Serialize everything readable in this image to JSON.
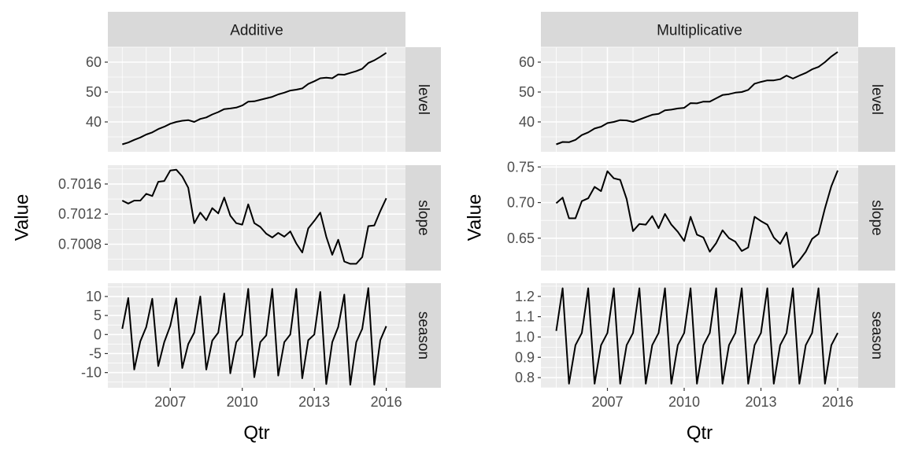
{
  "chart_data": [
    {
      "type": "line",
      "title": "Additive",
      "xlabel": "Qtr",
      "ylabel": "Value",
      "x_ticks": [
        2007,
        2010,
        2013,
        2016
      ],
      "x_start": 2005.0,
      "x_step": 0.25,
      "xlim": [
        2004.4,
        2016.8
      ],
      "grid": true,
      "rows": [
        {
          "label": "level",
          "ylim": [
            30,
            65
          ],
          "ticks": [
            40,
            50,
            60
          ],
          "tick_labels": [
            "40",
            "50",
            "60"
          ],
          "values": [
            32.5,
            33.1,
            34.0,
            34.8,
            35.8,
            36.5,
            37.6,
            38.4,
            39.4,
            40.0,
            40.4,
            40.6,
            40.0,
            41.0,
            41.5,
            42.5,
            43.3,
            44.3,
            44.5,
            44.8,
            45.5,
            46.8,
            46.9,
            47.4,
            47.9,
            48.4,
            49.2,
            49.8,
            50.5,
            50.8,
            51.2,
            52.7,
            53.6,
            54.6,
            54.8,
            54.6,
            55.9,
            55.8,
            56.4,
            57.0,
            57.8,
            59.7,
            60.6,
            61.8,
            63.1
          ]
        },
        {
          "label": "slope",
          "ylim": [
            0.70045,
            0.70185
          ],
          "ticks": [
            0.7008,
            0.7012,
            0.7016
          ],
          "tick_labels": [
            "0.7008",
            "0.7012",
            "0.7016"
          ],
          "values": [
            0.70138,
            0.70134,
            0.70138,
            0.70138,
            0.70147,
            0.70144,
            0.70163,
            0.70164,
            0.70178,
            0.70179,
            0.7017,
            0.70155,
            0.70108,
            0.70122,
            0.70112,
            0.70128,
            0.70121,
            0.70142,
            0.70118,
            0.70108,
            0.70106,
            0.70133,
            0.70108,
            0.70103,
            0.70094,
            0.70089,
            0.70095,
            0.7009,
            0.70097,
            0.70081,
            0.70069,
            0.70101,
            0.70111,
            0.70122,
            0.7009,
            0.70066,
            0.70086,
            0.70057,
            0.70054,
            0.70054,
            0.70063,
            0.70104,
            0.70105,
            0.70124,
            0.70141
          ]
        },
        {
          "label": "season",
          "ylim": [
            -14,
            13.5
          ],
          "ticks": [
            -10,
            -5,
            0,
            5,
            10
          ],
          "tick_labels": [
            "-10",
            "-5",
            "0",
            "5",
            "10"
          ],
          "values": [
            1.5,
            9.6,
            -9.2,
            -1.8,
            2.0,
            9.4,
            -8.3,
            -2.0,
            2.3,
            9.5,
            -8.8,
            -2.5,
            0.5,
            10.0,
            -9.2,
            -1.6,
            0.5,
            10.8,
            -10.2,
            -2.0,
            -0.1,
            12.0,
            -11.2,
            -2.0,
            -0.2,
            12.0,
            -10.8,
            -2.0,
            0.0,
            12.0,
            -11.5,
            -1.5,
            0.0,
            11.2,
            -13.0,
            -2.0,
            2.0,
            10.5,
            -13.2,
            -2.0,
            1.5,
            12.2,
            -13.2,
            -1.5,
            2.2
          ]
        }
      ]
    },
    {
      "type": "line",
      "title": "Multiplicative",
      "xlabel": "Qtr",
      "ylabel": "Value",
      "x_ticks": [
        2007,
        2010,
        2013,
        2016
      ],
      "x_start": 2005.0,
      "x_step": 0.25,
      "xlim": [
        2004.4,
        2016.8
      ],
      "grid": true,
      "rows": [
        {
          "label": "level",
          "ylim": [
            30,
            65
          ],
          "ticks": [
            40,
            50,
            60
          ],
          "tick_labels": [
            "40",
            "50",
            "60"
          ],
          "values": [
            32.5,
            33.3,
            33.2,
            34.0,
            35.6,
            36.5,
            37.8,
            38.4,
            39.6,
            40.0,
            40.6,
            40.5,
            40.0,
            40.8,
            41.6,
            42.4,
            42.7,
            43.9,
            44.1,
            44.5,
            44.7,
            46.3,
            46.2,
            46.8,
            46.8,
            47.9,
            49.0,
            49.3,
            49.8,
            50.0,
            50.7,
            52.8,
            53.4,
            53.9,
            53.9,
            54.3,
            55.5,
            54.5,
            55.5,
            56.4,
            57.6,
            58.4,
            60.0,
            61.9,
            63.4
          ]
        },
        {
          "label": "slope",
          "ylim": [
            0.6045,
            0.7525
          ],
          "ticks": [
            0.65,
            0.7,
            0.75
          ],
          "tick_labels": [
            "0.65",
            "0.70",
            "0.75"
          ],
          "values": [
            0.699,
            0.707,
            0.678,
            0.678,
            0.702,
            0.706,
            0.722,
            0.716,
            0.744,
            0.734,
            0.732,
            0.705,
            0.66,
            0.67,
            0.669,
            0.681,
            0.664,
            0.684,
            0.669,
            0.659,
            0.646,
            0.68,
            0.655,
            0.651,
            0.631,
            0.643,
            0.661,
            0.65,
            0.645,
            0.632,
            0.637,
            0.68,
            0.674,
            0.669,
            0.651,
            0.642,
            0.658,
            0.609,
            0.619,
            0.631,
            0.649,
            0.656,
            0.692,
            0.723,
            0.745
          ]
        },
        {
          "label": "season",
          "ylim": [
            0.75,
            1.265
          ],
          "ticks": [
            0.8,
            0.9,
            1.0,
            1.1,
            1.2
          ],
          "tick_labels": [
            "0.8",
            "0.9",
            "1.0",
            "1.1",
            "1.2"
          ],
          "values": [
            1.03,
            1.24,
            0.77,
            0.96,
            1.02,
            1.24,
            0.77,
            0.96,
            1.02,
            1.24,
            0.77,
            0.96,
            1.02,
            1.24,
            0.77,
            0.96,
            1.02,
            1.24,
            0.77,
            0.96,
            1.02,
            1.24,
            0.77,
            0.96,
            1.02,
            1.24,
            0.77,
            0.96,
            1.02,
            1.24,
            0.77,
            0.96,
            1.02,
            1.24,
            0.77,
            0.96,
            1.02,
            1.24,
            0.77,
            0.96,
            1.02,
            1.24,
            0.77,
            0.96,
            1.02
          ]
        }
      ]
    }
  ]
}
